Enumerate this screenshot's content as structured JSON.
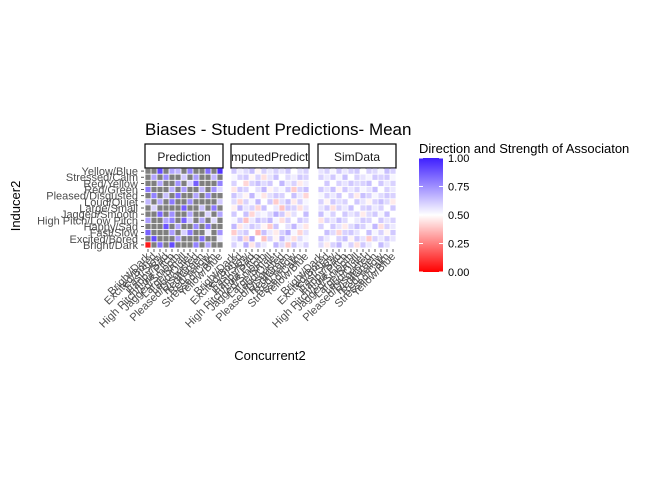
{
  "chart_data": {
    "type": "heatmap",
    "title": "Biases - Student Predictions- Mean",
    "xlabel": "Concurrent2",
    "ylabel": "Inducer2",
    "panels": [
      "Prediction",
      "ComputedPrediction",
      "SimData"
    ],
    "y_categories": [
      "Bright/Dark",
      "Excited/Bored",
      "Fast/Slow",
      "Happy/Sad",
      "High Pitch/Low Pitch",
      "Jagged/Smooth",
      "Large/Small",
      "Loud/Quiet",
      "Pleased/Disgusted",
      "Red/Green",
      "Red/Yellow",
      "Stressed/Calm",
      "Yellow/Blue"
    ],
    "y_tick_labels_visible": [
      "Yellow/Blue",
      "Stressed/Calm",
      "Red/Yellow",
      "Red/Green",
      "Pleased/Disgusted",
      "Loud/Quiet",
      "Large/Small",
      "Jagged/Smooth",
      "High Pitch/Low Pitch",
      "Happy/Sad",
      "Fast/Slow",
      "Excited/Bored",
      "Bright/Dark"
    ],
    "x_categories": [
      "Bright/Dark",
      "Excited/Bored",
      "Fast/Slow",
      "Happy/Sad",
      "High Pitch/Low Pitch",
      "Jagged/Smooth",
      "Large/Small",
      "Loud/Quiet",
      "Pleased/Disgusted",
      "Red/Green",
      "Red/Yellow",
      "Stressed/Calm",
      "Yellow/Blue"
    ],
    "x_tick_labels_visible": [
      "Bright/Dark",
      "Excited/Bored",
      "Fast/Slow",
      "Happy/Sad",
      "High Pitch/Low Pitch",
      "Jagged/Smooth",
      "Large/Small",
      "Loud/Quiet",
      "Pleased/Disgusted",
      "Red/Green",
      "Red/Yellow",
      "Stressed/Calm",
      "Yellow/Blue"
    ],
    "legend": {
      "title": "Direction and Strength of Associaton",
      "ticks": [
        "1.00",
        "0.75",
        "0.50",
        "0.25",
        "0.00"
      ],
      "tick_values": [
        1.0,
        0.75,
        0.5,
        0.25,
        0.0
      ],
      "range": [
        0,
        1
      ],
      "low_color": "#ff0000",
      "mid_color": "#ffffff",
      "high_color": "#3f1fff",
      "missing_color": "#7f7f7f"
    },
    "values": {
      "Prediction": [
        [
          0.05,
          null,
          0.82,
          null,
          0.9,
          null,
          null,
          null,
          0.78,
          null,
          0.7,
          null,
          null
        ],
        [
          null,
          0.9,
          null,
          null,
          null,
          0.72,
          null,
          null,
          null,
          0.82,
          null,
          null,
          0.55
        ],
        [
          0.85,
          null,
          null,
          null,
          0.72,
          null,
          0.6,
          0.8,
          null,
          null,
          0.55,
          null,
          0.74
        ],
        [
          null,
          null,
          null,
          0.88,
          null,
          0.7,
          null,
          null,
          0.76,
          null,
          0.8,
          null,
          null
        ],
        [
          0.72,
          null,
          null,
          0.7,
          0.78,
          null,
          0.85,
          0.62,
          null,
          0.7,
          null,
          0.58,
          null
        ],
        [
          null,
          null,
          0.84,
          null,
          0.75,
          null,
          null,
          0.7,
          null,
          null,
          0.6,
          null,
          0.7
        ],
        [
          null,
          0.6,
          null,
          null,
          null,
          null,
          0.86,
          null,
          null,
          0.64,
          null,
          0.8,
          null
        ],
        [
          0.66,
          null,
          0.7,
          null,
          0.8,
          null,
          null,
          0.75,
          null,
          null,
          null,
          null,
          0.62
        ],
        [
          null,
          0.78,
          null,
          0.64,
          null,
          0.82,
          null,
          null,
          0.7,
          null,
          0.76,
          null,
          null
        ],
        [
          0.8,
          null,
          null,
          null,
          0.68,
          null,
          0.72,
          null,
          null,
          0.66,
          null,
          0.74,
          0.58
        ],
        [
          null,
          null,
          0.7,
          null,
          null,
          0.74,
          null,
          0.6,
          0.86,
          null,
          null,
          null,
          0.78
        ],
        [
          null,
          0.7,
          null,
          0.76,
          null,
          null,
          0.62,
          null,
          0.72,
          null,
          null,
          0.66,
          null
        ],
        [
          null,
          null,
          0.9,
          null,
          0.7,
          0.66,
          null,
          0.78,
          null,
          null,
          0.82,
          null,
          0.95
        ]
      ],
      "ComputedPrediction": [
        [
          0.6,
          0.52,
          0.68,
          0.45,
          0.62,
          0.55,
          0.5,
          0.66,
          0.58,
          0.4,
          0.63,
          0.54,
          0.6
        ],
        [
          0.56,
          0.64,
          0.42,
          0.7,
          0.5,
          0.38,
          0.6,
          0.48,
          0.66,
          0.55,
          0.44,
          0.58,
          0.52
        ],
        [
          0.4,
          0.58,
          0.62,
          0.5,
          0.36,
          0.64,
          0.55,
          0.46,
          0.6,
          0.68,
          0.52,
          0.42,
          0.57
        ],
        [
          0.66,
          0.45,
          0.55,
          0.62,
          0.58,
          0.48,
          0.4,
          0.63,
          0.5,
          0.57,
          0.66,
          0.54,
          0.45
        ],
        [
          0.52,
          0.62,
          0.38,
          0.55,
          0.64,
          0.6,
          0.66,
          0.52,
          0.44,
          0.6,
          0.5,
          0.62,
          0.58
        ],
        [
          0.62,
          0.5,
          0.64,
          0.42,
          0.55,
          0.52,
          0.58,
          0.68,
          0.62,
          0.46,
          0.57,
          0.5,
          0.65
        ],
        [
          0.47,
          0.66,
          0.56,
          0.6,
          0.42,
          0.64,
          0.5,
          0.55,
          0.38,
          0.62,
          0.6,
          0.44,
          0.56
        ],
        [
          0.58,
          0.42,
          0.6,
          0.52,
          0.66,
          0.5,
          0.62,
          0.4,
          0.57,
          0.64,
          0.46,
          0.6,
          0.52
        ],
        [
          0.63,
          0.56,
          0.48,
          0.66,
          0.52,
          0.45,
          0.57,
          0.62,
          0.6,
          0.5,
          0.64,
          0.55,
          0.42
        ],
        [
          0.45,
          0.62,
          0.6,
          0.5,
          0.57,
          0.66,
          0.48,
          0.56,
          0.52,
          0.62,
          0.4,
          0.6,
          0.64
        ],
        [
          0.6,
          0.5,
          0.42,
          0.6,
          0.64,
          0.58,
          0.62,
          0.5,
          0.66,
          0.55,
          0.6,
          0.46,
          0.54
        ],
        [
          0.52,
          0.6,
          0.62,
          0.48,
          0.6,
          0.44,
          0.56,
          0.64,
          0.5,
          0.58,
          0.54,
          0.62,
          0.6
        ],
        [
          0.62,
          0.54,
          0.58,
          0.64,
          0.48,
          0.6,
          0.55,
          0.6,
          0.56,
          0.62,
          0.5,
          0.57,
          0.6
        ]
      ],
      "SimData": [
        [
          0.58,
          0.46,
          0.6,
          0.66,
          0.52,
          0.6,
          0.44,
          0.62,
          0.55,
          0.5,
          0.65,
          0.57,
          0.5
        ],
        [
          0.62,
          0.55,
          0.5,
          0.6,
          0.64,
          0.48,
          0.62,
          0.56,
          0.4,
          0.6,
          0.55,
          0.62,
          0.56
        ],
        [
          0.5,
          0.64,
          0.58,
          0.42,
          0.6,
          0.62,
          0.56,
          0.5,
          0.64,
          0.52,
          0.6,
          0.48,
          0.62
        ],
        [
          0.6,
          0.5,
          0.62,
          0.56,
          0.46,
          0.58,
          0.64,
          0.6,
          0.52,
          0.66,
          0.44,
          0.6,
          0.55
        ],
        [
          0.45,
          0.6,
          0.56,
          0.64,
          0.58,
          0.5,
          0.55,
          0.62,
          0.6,
          0.5,
          0.62,
          0.56,
          0.6
        ],
        [
          0.64,
          0.52,
          0.6,
          0.5,
          0.62,
          0.56,
          0.6,
          0.46,
          0.58,
          0.62,
          0.52,
          0.64,
          0.5
        ],
        [
          0.56,
          0.62,
          0.44,
          0.6,
          0.55,
          0.64,
          0.5,
          0.6,
          0.62,
          0.55,
          0.6,
          0.5,
          0.62
        ],
        [
          0.6,
          0.48,
          0.62,
          0.57,
          0.6,
          0.5,
          0.62,
          0.56,
          0.48,
          0.6,
          0.64,
          0.58,
          0.46
        ],
        [
          0.52,
          0.6,
          0.55,
          0.62,
          0.5,
          0.6,
          0.46,
          0.64,
          0.6,
          0.52,
          0.58,
          0.62,
          0.6
        ],
        [
          0.62,
          0.56,
          0.64,
          0.48,
          0.62,
          0.55,
          0.6,
          0.52,
          0.56,
          0.64,
          0.5,
          0.6,
          0.55
        ],
        [
          0.5,
          0.62,
          0.5,
          0.6,
          0.56,
          0.62,
          0.58,
          0.6,
          0.64,
          0.5,
          0.62,
          0.55,
          0.6
        ],
        [
          0.6,
          0.55,
          0.62,
          0.52,
          0.64,
          0.5,
          0.6,
          0.56,
          0.52,
          0.62,
          0.6,
          0.62,
          0.52
        ],
        [
          0.56,
          0.6,
          0.52,
          0.62,
          0.55,
          0.6,
          0.62,
          0.5,
          0.6,
          0.58,
          0.52,
          0.64,
          0.6
        ]
      ]
    }
  }
}
